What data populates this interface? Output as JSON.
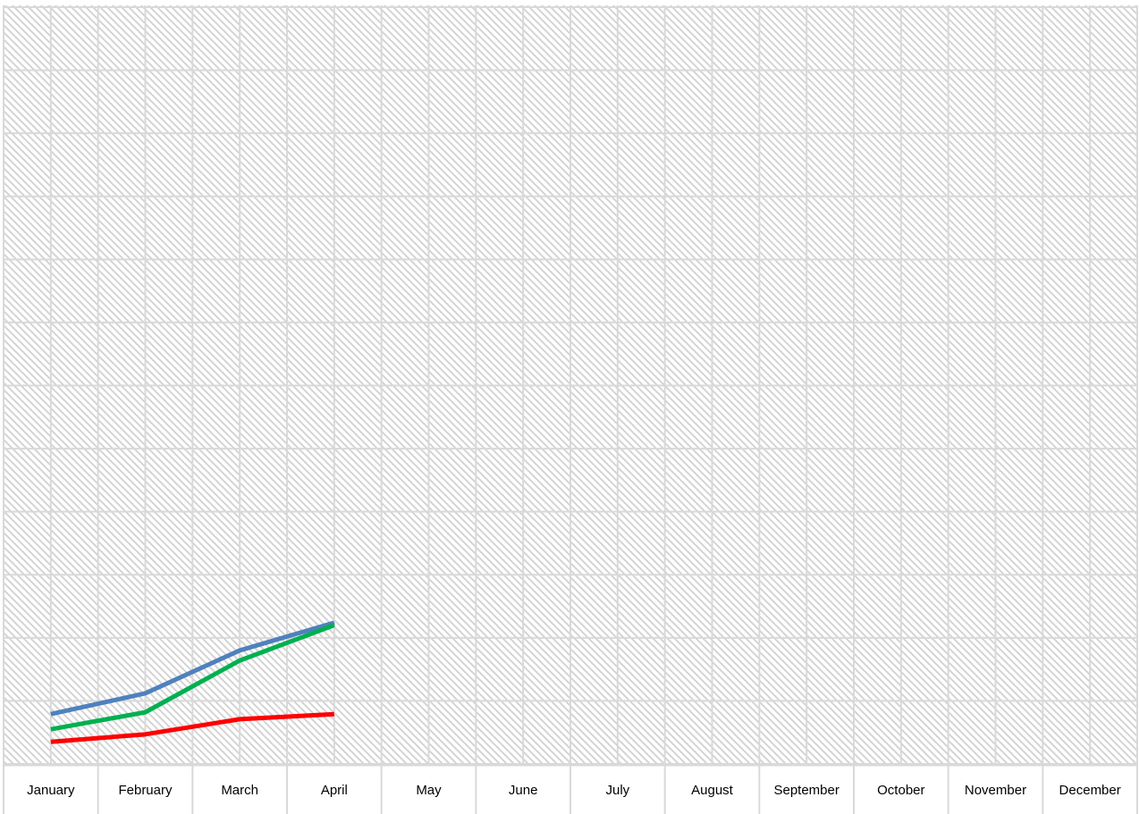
{
  "chart_data": {
    "type": "line",
    "categories": [
      "January",
      "February",
      "March",
      "April",
      "May",
      "June",
      "July",
      "August",
      "September",
      "October",
      "November",
      "December"
    ],
    "series": [
      {
        "color": "#4f81bd",
        "values": [
          0.79,
          1.12,
          1.8,
          2.24,
          null,
          null,
          null,
          null,
          null,
          null,
          null,
          null
        ]
      },
      {
        "color": "#00b050",
        "values": [
          0.55,
          0.82,
          1.64,
          2.2,
          null,
          null,
          null,
          null,
          null,
          null,
          null,
          null
        ]
      },
      {
        "color": "#ff0000",
        "values": [
          0.35,
          0.47,
          0.71,
          0.79,
          null,
          null,
          null,
          null,
          null,
          null,
          null,
          null
        ]
      }
    ],
    "ylim": [
      0,
      12
    ],
    "yticks": [
      0,
      1,
      2,
      3,
      4,
      5,
      6,
      7,
      8,
      9,
      10,
      11,
      12
    ],
    "grid": true
  }
}
